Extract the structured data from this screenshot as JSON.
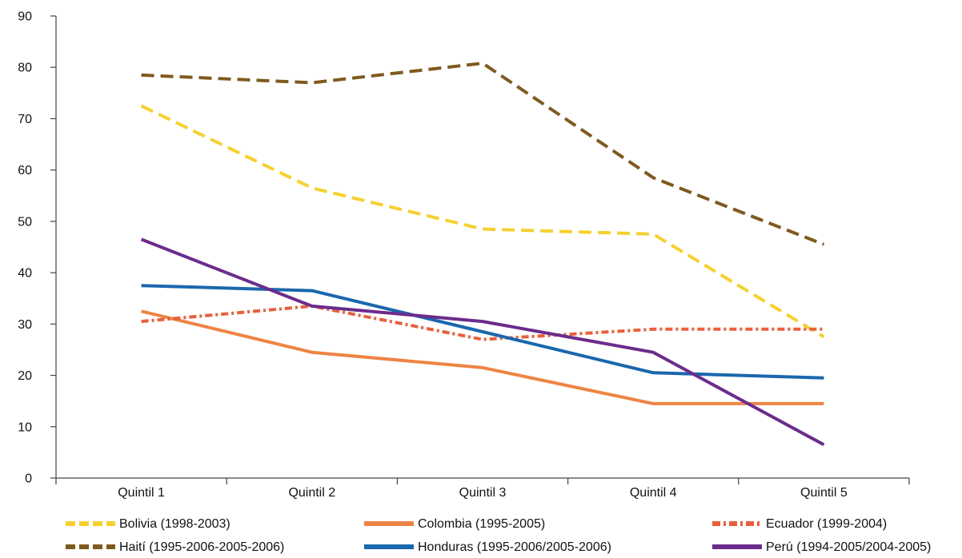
{
  "chart_data": {
    "type": "line",
    "title": "",
    "xlabel": "",
    "ylabel": "",
    "categories": [
      "Quintil 1",
      "Quintil 2",
      "Quintil 3",
      "Quintil 4",
      "Quintil 5"
    ],
    "ylim": [
      0,
      90
    ],
    "yticks": [
      0,
      10,
      20,
      30,
      40,
      50,
      60,
      70,
      80,
      90
    ],
    "grid": false,
    "legend_position": "bottom",
    "series": [
      {
        "name": "Bolivia  (1998-2003)",
        "values": [
          72.5,
          56.5,
          48.5,
          47.5,
          27.5
        ],
        "color": "#F5D130",
        "style": "dashed"
      },
      {
        "name": "Colombia (1995-2005)",
        "values": [
          32.5,
          24.5,
          21.5,
          14.5,
          14.5
        ],
        "color": "#EE8444",
        "style": "solid"
      },
      {
        "name": "Ecuador (1999-2004)",
        "values": [
          30.5,
          33.5,
          27.0,
          29.0,
          29.0
        ],
        "color": "#E8603C",
        "style": "dash-dot"
      },
      {
        "name": "Haití (1995-2006-2005-2006)",
        "values": [
          78.5,
          77.0,
          80.8,
          58.5,
          45.5
        ],
        "color": "#7F5A1E",
        "style": "dashed"
      },
      {
        "name": "Honduras (1995-2006/2005-2006)",
        "values": [
          37.5,
          36.5,
          28.5,
          20.5,
          19.5
        ],
        "color": "#1A67AD",
        "style": "solid"
      },
      {
        "name": "Perú (1994-2005/2004-2005)",
        "values": [
          46.5,
          33.5,
          30.5,
          24.5,
          6.5
        ],
        "color": "#6B2C8B",
        "style": "solid"
      }
    ]
  }
}
